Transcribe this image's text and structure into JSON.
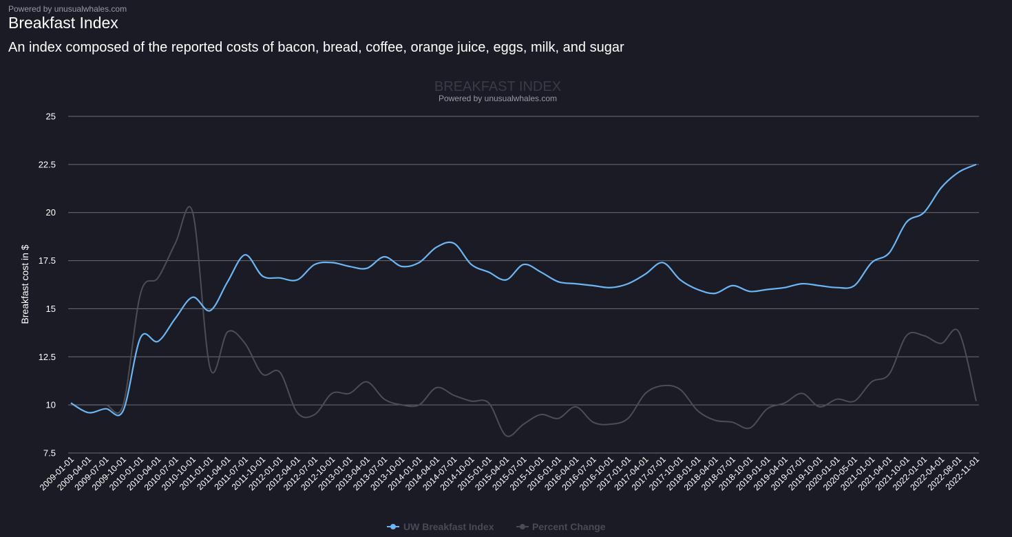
{
  "header": {
    "powered_by": "Powered by unusualwhales.com",
    "title": "Breakfast Index",
    "subtitle": "An index composed of the reported costs of bacon, bread, coffee, orange juice, eggs, milk, and sugar"
  },
  "colors": {
    "background": "#1b1b26",
    "index_line": "#6cb6f5",
    "percent_line": "#4d4d52",
    "grid": "#6e6e78",
    "legend_text": "#4a4a55"
  },
  "chart_data": {
    "type": "line",
    "title": "BREAKFAST INDEX",
    "subtitle": "Powered by unusualwhales.com",
    "ylabel": "Breakfast cost in $",
    "xlabel": "",
    "ylim": [
      7.5,
      25
    ],
    "yticks": [
      25,
      22.5,
      20,
      17.5,
      15,
      12.5,
      10,
      7.5
    ],
    "ytick_labels": [
      "25",
      "22.5",
      "20",
      "17.5",
      "15",
      "12.5",
      "10",
      "7.5"
    ],
    "grid": true,
    "legend_position": "bottom-center",
    "categories": [
      "2009-01-01",
      "2009-04-01",
      "2009-07-01",
      "2009-10-01",
      "2010-01-01",
      "2010-04-01",
      "2010-07-01",
      "2010-10-01",
      "2011-01-01",
      "2011-04-01",
      "2011-07-01",
      "2011-10-01",
      "2012-01-01",
      "2012-04-01",
      "2012-07-01",
      "2012-10-01",
      "2013-01-01",
      "2013-04-01",
      "2013-07-01",
      "2013-10-01",
      "2014-01-01",
      "2014-04-01",
      "2014-07-01",
      "2014-10-01",
      "2015-01-01",
      "2015-04-01",
      "2015-07-01",
      "2015-10-01",
      "2016-01-01",
      "2016-04-01",
      "2016-07-01",
      "2016-10-01",
      "2017-01-01",
      "2017-04-01",
      "2017-07-01",
      "2017-10-01",
      "2018-01-01",
      "2018-04-01",
      "2018-07-01",
      "2018-10-01",
      "2019-01-01",
      "2019-04-01",
      "2019-07-01",
      "2019-10-01",
      "2020-01-01",
      "2020-05-01",
      "2021-01-01",
      "2021-04-01",
      "2021-10-01",
      "2022-01-01",
      "2022-04-01",
      "2022-08-01",
      "2022-11-01"
    ],
    "series": [
      {
        "name": "UW Breakfast Index",
        "color": "#6cb6f5",
        "values": [
          10.1,
          9.6,
          9.8,
          9.7,
          13.5,
          13.3,
          14.5,
          15.6,
          14.9,
          16.4,
          17.8,
          16.7,
          16.6,
          16.5,
          17.3,
          17.4,
          17.2,
          17.1,
          17.7,
          17.2,
          17.4,
          18.2,
          18.4,
          17.3,
          16.9,
          16.5,
          17.3,
          16.9,
          16.4,
          16.3,
          16.2,
          16.1,
          16.3,
          16.8,
          17.4,
          16.5,
          16.0,
          15.8,
          16.2,
          15.9,
          16.0,
          16.1,
          16.3,
          16.2,
          16.1,
          16.2,
          17.4,
          17.9,
          19.5,
          20.0,
          21.3,
          22.1,
          22.5
        ]
      },
      {
        "name": "Percent Change",
        "color": "#4d4d52",
        "values": [
          10.0,
          10.0,
          10.0,
          10.0,
          15.8,
          16.6,
          18.4,
          20.0,
          11.9,
          13.8,
          13.2,
          11.6,
          11.7,
          9.6,
          9.5,
          10.6,
          10.6,
          11.2,
          10.3,
          10.0,
          10.0,
          10.9,
          10.5,
          10.2,
          10.1,
          8.4,
          9.0,
          9.5,
          9.3,
          9.9,
          9.1,
          9.0,
          9.3,
          10.6,
          11.0,
          10.8,
          9.7,
          9.2,
          9.1,
          8.8,
          9.8,
          10.1,
          10.6,
          9.9,
          10.3,
          10.2,
          11.2,
          11.6,
          13.6,
          13.6,
          13.2,
          13.8,
          10.2
        ]
      }
    ]
  }
}
